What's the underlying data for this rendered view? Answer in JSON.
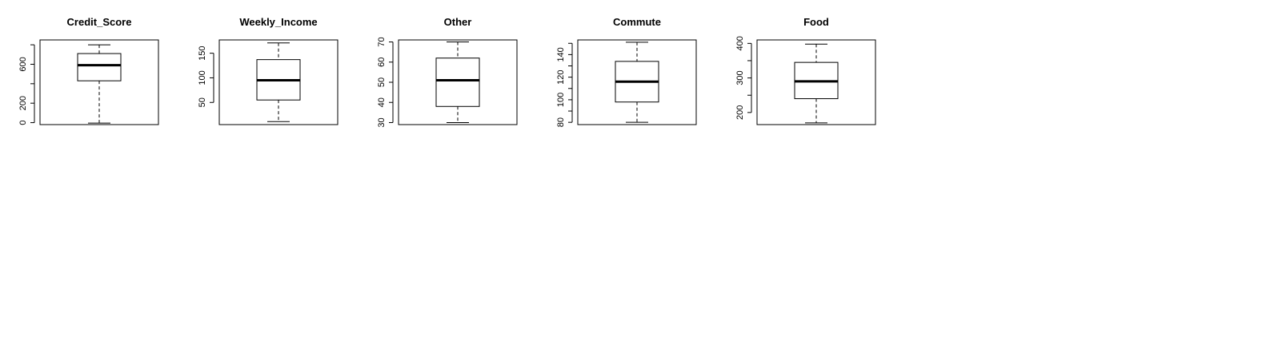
{
  "chart_data": [
    {
      "type": "box",
      "title": "Credit_Score",
      "ylim": [
        -20,
        850
      ],
      "yticks": [
        0,
        200,
        400,
        600,
        800
      ],
      "ytick_labels": [
        "0",
        "200",
        "",
        "600",
        ""
      ],
      "box": {
        "min": -5,
        "q1": 430,
        "median": 590,
        "q3": 710,
        "max": 800
      }
    },
    {
      "type": "box",
      "title": "Weekly_Income",
      "ylim": [
        5,
        177
      ],
      "yticks": [
        50,
        100,
        150
      ],
      "ytick_labels": [
        "50",
        "100",
        "150"
      ],
      "box": {
        "min": 11,
        "q1": 55,
        "median": 95,
        "q3": 137,
        "max": 171
      }
    },
    {
      "type": "box",
      "title": "Other",
      "ylim": [
        29,
        71
      ],
      "yticks": [
        30,
        40,
        50,
        60,
        70
      ],
      "ytick_labels": [
        "30",
        "40",
        "50",
        "60",
        "70"
      ],
      "box": {
        "min": 30,
        "q1": 38,
        "median": 51,
        "q3": 62,
        "max": 70
      }
    },
    {
      "type": "box",
      "title": "Commute",
      "ylim": [
        78,
        153
      ],
      "yticks": [
        80,
        90,
        100,
        110,
        120,
        130,
        140,
        150
      ],
      "ytick_labels": [
        "80",
        "",
        "100",
        "",
        "120",
        "",
        "140",
        ""
      ],
      "box": {
        "min": 80,
        "q1": 98,
        "median": 116,
        "q3": 134,
        "max": 151
      }
    },
    {
      "type": "box",
      "title": "Food",
      "ylim": [
        165,
        410
      ],
      "yticks": [
        200,
        250,
        300,
        350,
        400
      ],
      "ytick_labels": [
        "200",
        "",
        "300",
        "",
        "400"
      ],
      "box": {
        "min": 170,
        "q1": 240,
        "median": 290,
        "q3": 345,
        "max": 398
      }
    }
  ]
}
